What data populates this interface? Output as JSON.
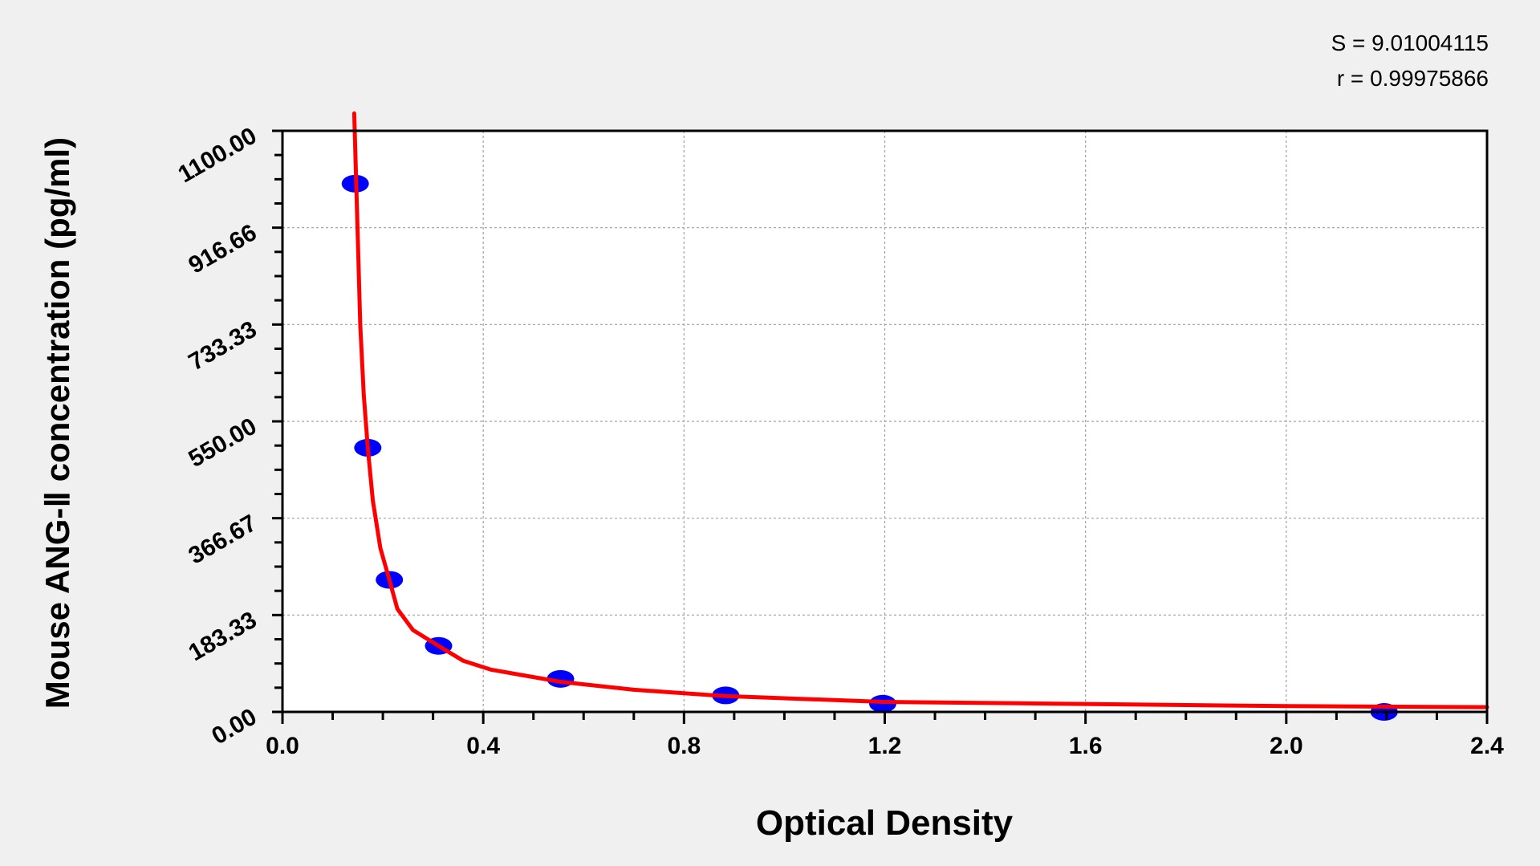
{
  "chart_data": {
    "type": "scatter",
    "xlabel": "Optical Density",
    "ylabel": "Mouse ANG-Ⅱ  concentration (pg/ml)",
    "xlim": [
      0,
      2.4
    ],
    "ylim": [
      0,
      1100
    ],
    "x_ticks": [
      "0.0",
      "0.4",
      "0.8",
      "1.2",
      "1.6",
      "2.0",
      "2.4"
    ],
    "x_tick_values": [
      0,
      0.4,
      0.8,
      1.2,
      1.6,
      2.0,
      2.4
    ],
    "y_ticks": [
      "0.00",
      "183.33",
      "366.67",
      "550.00",
      "733.33",
      "916.66",
      "1100.00"
    ],
    "y_tick_values": [
      0,
      183.33,
      366.67,
      550,
      733.33,
      916.66,
      1100
    ],
    "grid": true,
    "annotations": [
      "S = 9.01004115",
      "r = 0.99975866"
    ],
    "points": {
      "x": [
        0.145,
        0.17,
        0.213,
        0.311,
        0.554,
        0.883,
        1.196,
        2.195
      ],
      "y": [
        1000,
        500,
        250,
        125,
        62.5,
        31.25,
        15.6,
        0
      ]
    },
    "fit_curve": {
      "x": [
        0.143,
        0.15,
        0.155,
        0.162,
        0.17,
        0.18,
        0.195,
        0.213,
        0.229,
        0.26,
        0.311,
        0.36,
        0.415,
        0.554,
        0.7,
        0.883,
        1.196,
        1.5,
        1.785,
        2.0,
        2.4
      ],
      "y": [
        1133,
        900,
        733,
        600,
        500,
        400,
        310,
        250,
        195,
        155,
        125,
        97,
        80,
        57,
        42,
        30,
        19,
        16,
        13,
        11,
        9
      ]
    },
    "colors": {
      "points": "#0000ff",
      "curve": "#ff0000",
      "background": "#f0f0f0",
      "plot_area": "#ffffff",
      "grid": "#a0a0a0"
    }
  }
}
